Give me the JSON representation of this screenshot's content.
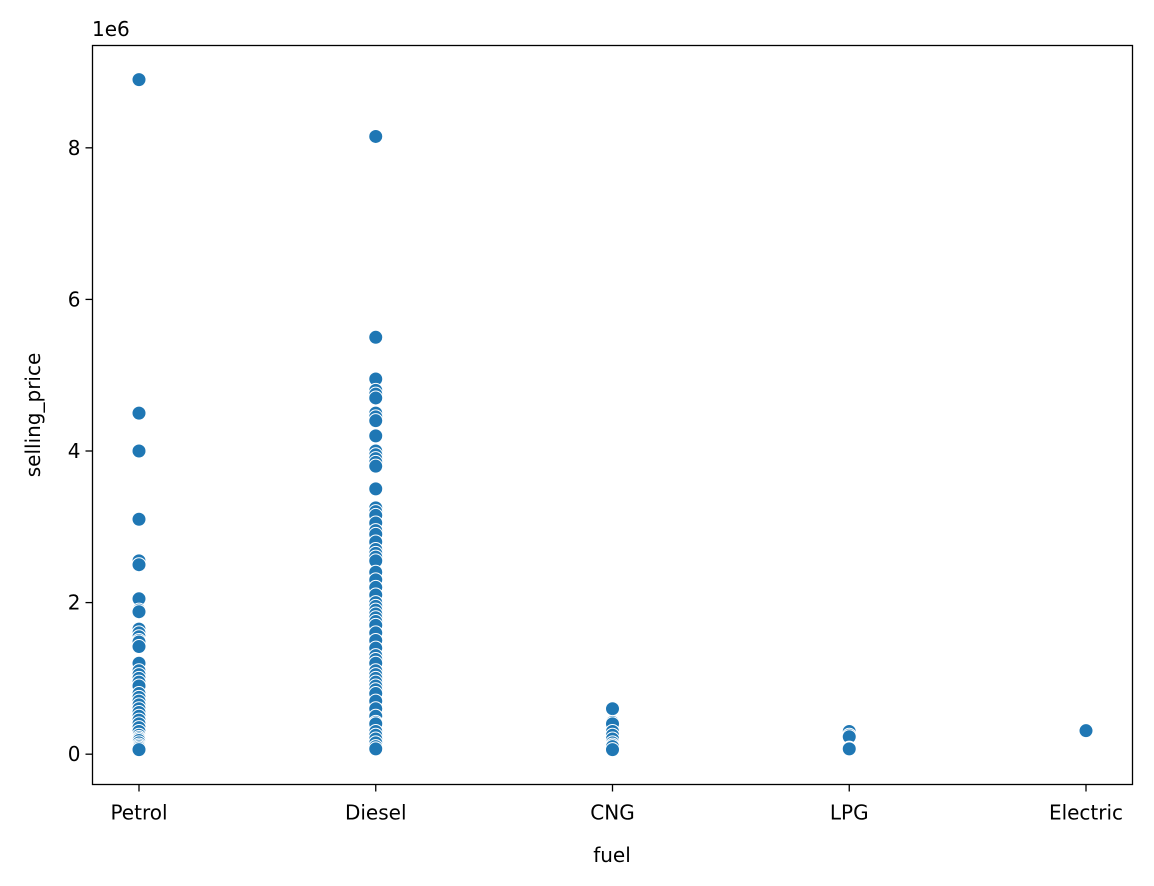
{
  "chart_data": {
    "type": "scatter",
    "xlabel": "fuel",
    "ylabel": "selling_price",
    "y_offset_label": "1e6",
    "categories": [
      "Petrol",
      "Diesel",
      "CNG",
      "LPG",
      "Electric"
    ],
    "y_ticks": [
      0,
      2000000,
      4000000,
      6000000,
      8000000
    ],
    "y_tick_labels": [
      "0",
      "2",
      "4",
      "6",
      "8"
    ],
    "ylim": [
      -400000,
      9350000
    ],
    "grid": false,
    "legend": "none",
    "marker_color": "#1f77b4",
    "points": {
      "Petrol": [
        8900000,
        4500000,
        4000000,
        3100000,
        2550000,
        2500000,
        2050000,
        1900000,
        1880000,
        1650000,
        1600000,
        1550000,
        1500000,
        1480000,
        1420000,
        1200000,
        1100000,
        1050000,
        1000000,
        950000,
        900000,
        800000,
        750000,
        700000,
        650000,
        600000,
        550000,
        500000,
        450000,
        400000,
        350000,
        300000,
        250000,
        220000,
        200000,
        180000,
        150000,
        120000,
        100000,
        80000,
        60000
      ],
      "Diesel": [
        8150000,
        5500000,
        4950000,
        4800000,
        4750000,
        4700000,
        4500000,
        4450000,
        4400000,
        4200000,
        4000000,
        3950000,
        3900000,
        3850000,
        3800000,
        3500000,
        3250000,
        3200000,
        3150000,
        3050000,
        2950000,
        2900000,
        2800000,
        2700000,
        2650000,
        2600000,
        2550000,
        2400000,
        2300000,
        2200000,
        2100000,
        2000000,
        1950000,
        1900000,
        1850000,
        1800000,
        1750000,
        1700000,
        1600000,
        1500000,
        1400000,
        1300000,
        1250000,
        1200000,
        1100000,
        1050000,
        1000000,
        950000,
        900000,
        850000,
        800000,
        700000,
        600000,
        500000,
        420000,
        400000,
        300000,
        250000,
        200000,
        150000,
        100000,
        70000
      ],
      "CNG": [
        600000,
        420000,
        400000,
        300000,
        250000,
        200000,
        150000,
        120000,
        100000,
        60000
      ],
      "LPG": [
        300000,
        250000,
        230000,
        80000,
        70000
      ],
      "Electric": [
        310000
      ]
    }
  }
}
